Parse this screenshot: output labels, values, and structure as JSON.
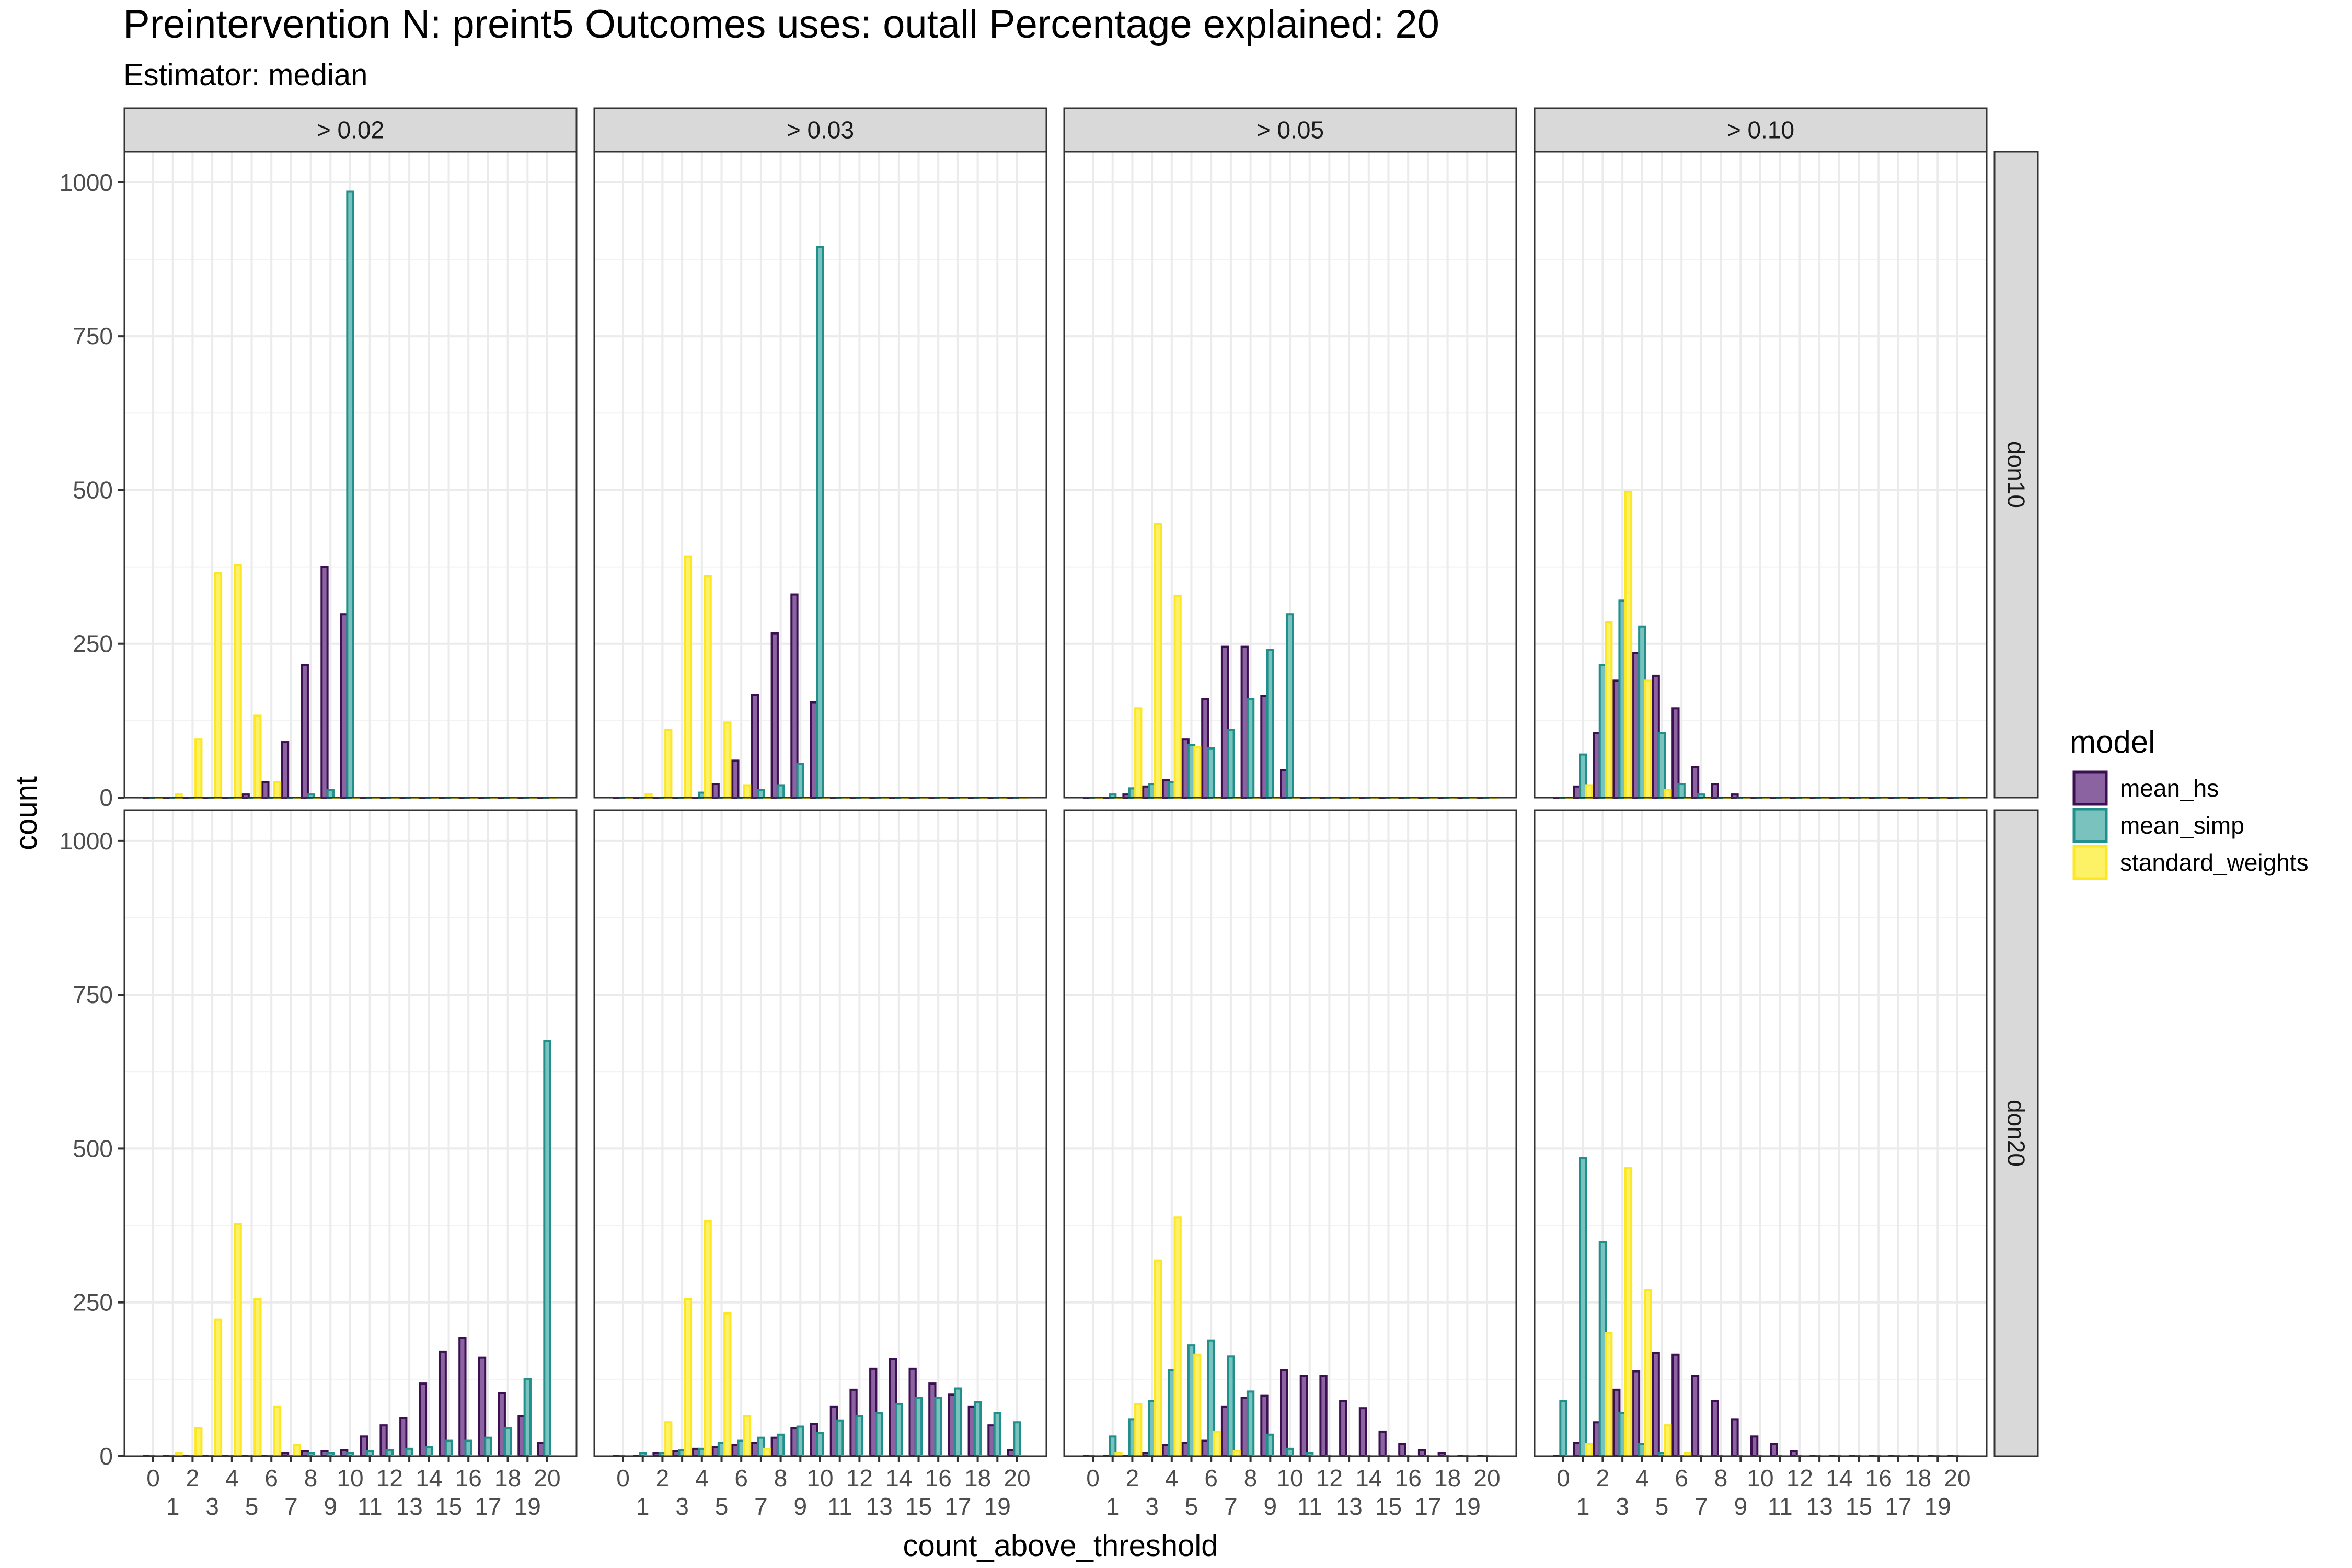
{
  "chart_data": {
    "type": "bar",
    "title": "Preintervention N: preint5 Outcomes uses: outall Percentage explained: 20",
    "subtitle": "Estimator: median",
    "xlabel": "count_above_threshold",
    "ylabel": "count",
    "ylim": [
      0,
      1050
    ],
    "yticks": [
      0,
      250,
      500,
      750,
      1000
    ],
    "x_categories": [
      "0",
      "1",
      "2",
      "3",
      "4",
      "5",
      "6",
      "7",
      "8",
      "9",
      "10",
      "11",
      "12",
      "13",
      "14",
      "15",
      "16",
      "17",
      "18",
      "19",
      "20"
    ],
    "facet_cols": [
      "> 0.02",
      "> 0.03",
      "> 0.05",
      "> 0.10"
    ],
    "facet_rows": [
      "don10",
      "don20"
    ],
    "legend": {
      "title": "model",
      "position": "right",
      "entries": [
        {
          "name": "mean_hs",
          "fill": "#8a63a0",
          "stroke": "#3b0f50"
        },
        {
          "name": "mean_simp",
          "fill": "#79c2bd",
          "stroke": "#21908c"
        },
        {
          "name": "standard_weights",
          "fill": "#fdf266",
          "stroke": "#fde725"
        }
      ]
    },
    "grid": true,
    "panels": [
      {
        "row": "don10",
        "col": "> 0.02",
        "series": [
          {
            "name": "mean_hs",
            "values": [
              0,
              0,
              0,
              0,
              0,
              5,
              25,
              90,
              215,
              375,
              298,
              0,
              0,
              0,
              0,
              0,
              0,
              0,
              0,
              0,
              0
            ]
          },
          {
            "name": "mean_simp",
            "values": [
              0,
              0,
              0,
              0,
              0,
              0,
              0,
              0,
              5,
              12,
              985,
              0,
              0,
              0,
              0,
              0,
              0,
              0,
              0,
              0,
              0
            ]
          },
          {
            "name": "standard_weights",
            "values": [
              0,
              5,
              95,
              365,
              378,
              133,
              25,
              0,
              0,
              0,
              0,
              0,
              0,
              0,
              0,
              0,
              0,
              0,
              0,
              0,
              0
            ]
          }
        ]
      },
      {
        "row": "don10",
        "col": "> 0.03",
        "series": [
          {
            "name": "mean_hs",
            "values": [
              0,
              0,
              0,
              0,
              0,
              22,
              60,
              167,
              267,
              330,
              155,
              0,
              0,
              0,
              0,
              0,
              0,
              0,
              0,
              0,
              0
            ]
          },
          {
            "name": "mean_simp",
            "values": [
              0,
              0,
              0,
              0,
              8,
              0,
              0,
              12,
              20,
              55,
              895,
              0,
              0,
              0,
              0,
              0,
              0,
              0,
              0,
              0,
              0
            ]
          },
          {
            "name": "standard_weights",
            "values": [
              0,
              5,
              110,
              392,
              360,
              122,
              20,
              0,
              0,
              0,
              0,
              0,
              0,
              0,
              0,
              0,
              0,
              0,
              0,
              0,
              0
            ]
          }
        ]
      },
      {
        "row": "don10",
        "col": "> 0.05",
        "series": [
          {
            "name": "mean_hs",
            "values": [
              0,
              0,
              5,
              18,
              28,
              95,
              160,
              245,
              245,
              165,
              45,
              0,
              0,
              0,
              0,
              0,
              0,
              0,
              0,
              0,
              0
            ]
          },
          {
            "name": "mean_simp",
            "values": [
              0,
              5,
              15,
              22,
              25,
              85,
              80,
              110,
              160,
              240,
              298,
              0,
              0,
              0,
              0,
              0,
              0,
              0,
              0,
              0,
              0
            ]
          },
          {
            "name": "standard_weights",
            "values": [
              0,
              0,
              145,
              445,
              328,
              82,
              0,
              0,
              0,
              0,
              0,
              0,
              0,
              0,
              0,
              0,
              0,
              0,
              0,
              0,
              0
            ]
          }
        ]
      },
      {
        "row": "don10",
        "col": "> 0.10",
        "series": [
          {
            "name": "mean_hs",
            "values": [
              0,
              18,
              105,
              190,
              235,
              198,
              145,
              50,
              22,
              5,
              0,
              0,
              0,
              0,
              0,
              0,
              0,
              0,
              0,
              0,
              0
            ]
          },
          {
            "name": "mean_simp",
            "values": [
              0,
              70,
              215,
              320,
              278,
              105,
              22,
              5,
              0,
              0,
              0,
              0,
              0,
              0,
              0,
              0,
              0,
              0,
              0,
              0,
              0
            ]
          },
          {
            "name": "standard_weights",
            "values": [
              0,
              20,
              285,
              497,
              190,
              12,
              0,
              0,
              0,
              0,
              0,
              0,
              0,
              0,
              0,
              0,
              0,
              0,
              0,
              0,
              0
            ]
          }
        ]
      },
      {
        "row": "don20",
        "col": "> 0.02",
        "series": [
          {
            "name": "mean_hs",
            "values": [
              0,
              0,
              0,
              0,
              0,
              0,
              0,
              5,
              8,
              8,
              10,
              32,
              50,
              62,
              118,
              170,
              192,
              160,
              102,
              65,
              22
            ]
          },
          {
            "name": "mean_simp",
            "values": [
              0,
              0,
              0,
              0,
              0,
              0,
              0,
              0,
              5,
              5,
              5,
              8,
              10,
              12,
              15,
              25,
              25,
              30,
              45,
              125,
              675
            ]
          },
          {
            "name": "standard_weights",
            "values": [
              0,
              5,
              45,
              222,
              378,
              255,
              80,
              18,
              0,
              0,
              0,
              0,
              0,
              0,
              0,
              0,
              0,
              0,
              0,
              0,
              0
            ]
          }
        ]
      },
      {
        "row": "don20",
        "col": "> 0.03",
        "series": [
          {
            "name": "mean_hs",
            "values": [
              0,
              0,
              5,
              8,
              12,
              15,
              18,
              22,
              30,
              45,
              52,
              80,
              108,
              142,
              158,
              142,
              118,
              100,
              80,
              50,
              10
            ]
          },
          {
            "name": "mean_simp",
            "values": [
              0,
              5,
              5,
              10,
              12,
              22,
              25,
              30,
              35,
              48,
              38,
              58,
              65,
              70,
              85,
              95,
              95,
              110,
              88,
              70,
              55
            ]
          },
          {
            "name": "standard_weights",
            "values": [
              0,
              0,
              55,
              255,
              382,
              232,
              65,
              12,
              0,
              0,
              0,
              0,
              0,
              0,
              0,
              0,
              0,
              0,
              0,
              0,
              0
            ]
          }
        ]
      },
      {
        "row": "don20",
        "col": "> 0.05",
        "series": [
          {
            "name": "mean_hs",
            "values": [
              0,
              0,
              0,
              5,
              18,
              22,
              25,
              80,
              95,
              98,
              140,
              130,
              130,
              90,
              78,
              40,
              20,
              10,
              5,
              0,
              0
            ]
          },
          {
            "name": "mean_simp",
            "values": [
              0,
              32,
              60,
              90,
              140,
              180,
              188,
              162,
              105,
              35,
              12,
              5,
              0,
              0,
              0,
              0,
              0,
              0,
              0,
              0,
              0
            ]
          },
          {
            "name": "standard_weights",
            "values": [
              0,
              5,
              85,
              318,
              388,
              165,
              40,
              8,
              0,
              0,
              0,
              0,
              0,
              0,
              0,
              0,
              0,
              0,
              0,
              0,
              0
            ]
          }
        ]
      },
      {
        "row": "don20",
        "col": "> 0.10",
        "series": [
          {
            "name": "mean_hs",
            "values": [
              0,
              22,
              55,
              108,
              138,
              168,
              165,
              130,
              90,
              60,
              32,
              20,
              8,
              0,
              0,
              0,
              0,
              0,
              0,
              0,
              0
            ]
          },
          {
            "name": "mean_simp",
            "values": [
              90,
              485,
              348,
              70,
              20,
              5,
              0,
              0,
              0,
              0,
              0,
              0,
              0,
              0,
              0,
              0,
              0,
              0,
              0,
              0,
              0
            ]
          },
          {
            "name": "standard_weights",
            "values": [
              0,
              20,
              200,
              468,
              270,
              50,
              5,
              0,
              0,
              0,
              0,
              0,
              0,
              0,
              0,
              0,
              0,
              0,
              0,
              0,
              0
            ]
          }
        ]
      }
    ]
  }
}
